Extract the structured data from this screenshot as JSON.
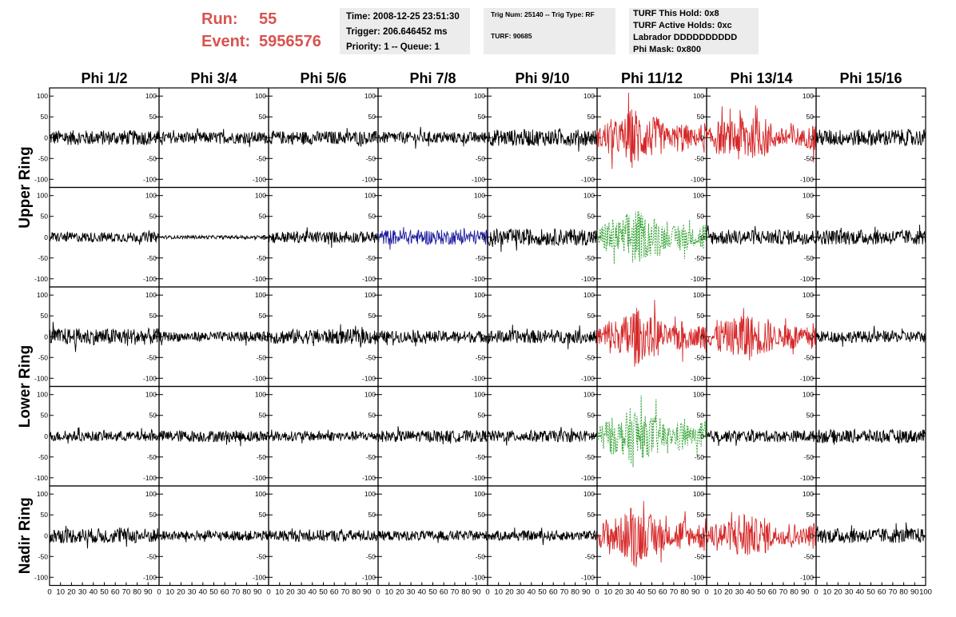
{
  "header": {
    "run_label": "Run:",
    "run_value": "55",
    "event_label": "Event:",
    "event_value": "5956576",
    "time": "Time: 2008-12-25 23:51:30",
    "trigger": "Trigger: 206.646452 ms",
    "priority": "Priority: 1 -- Queue: 1",
    "trig_num": "Trig Num: 25140 -- Trig Type: RF",
    "turf": "TURF: 90685",
    "turf_hold": "TURF This Hold: 0x8",
    "turf_active": "TURF Active Holds: 0xc",
    "labrador": "Labrador DDDDDDDDDD",
    "phi_mask": "Phi Mask: 0x800"
  },
  "chart_data": {
    "type": "line",
    "columns": [
      "Phi 1/2",
      "Phi 3/4",
      "Phi 5/6",
      "Phi 7/8",
      "Phi 9/10",
      "Phi 11/12",
      "Phi 13/14",
      "Phi 15/16"
    ],
    "ring_labels": [
      {
        "text": "Upper Ring",
        "rows": [
          0,
          1
        ]
      },
      {
        "text": "Lower Ring",
        "rows": [
          2,
          3
        ]
      },
      {
        "text": "Nadir Ring",
        "rows": [
          4,
          4
        ]
      }
    ],
    "ylim": [
      -110,
      110
    ],
    "yticks": [
      -100,
      -50,
      0,
      50,
      100
    ],
    "ytick_labels": [
      "-100",
      "-50",
      "0",
      "50",
      "100"
    ],
    "xlim": [
      0,
      100
    ],
    "xticks": [
      0,
      10,
      20,
      30,
      40,
      50,
      60,
      70,
      80,
      90,
      100
    ],
    "xtick_labels": [
      "0",
      "10",
      "20",
      "30",
      "40",
      "50",
      "60",
      "70",
      "80",
      "90",
      "100"
    ],
    "colors": {
      "normal": "#000000",
      "triggered": "#d62728",
      "masked": "#2ca02c",
      "held": "#1f1fa0"
    },
    "waveform_style": [
      [
        {
          "c": "normal",
          "a": 18
        },
        {
          "c": "normal",
          "a": 14
        },
        {
          "c": "normal",
          "a": 16
        },
        {
          "c": "normal",
          "a": 14
        },
        {
          "c": "normal",
          "a": 20
        },
        {
          "c": "triggered",
          "a": 30,
          "burst": true
        },
        {
          "c": "triggered",
          "a": 28,
          "burst": true
        },
        {
          "c": "normal",
          "a": 20
        }
      ],
      [
        {
          "c": "normal",
          "a": 12
        },
        {
          "c": "normal",
          "a": 4
        },
        {
          "c": "normal",
          "a": 14
        },
        {
          "c": "held",
          "a": 18
        },
        {
          "c": "normal",
          "a": 20
        },
        {
          "c": "masked",
          "a": 30,
          "burst": true,
          "dashed": true
        },
        {
          "c": "normal",
          "a": 18
        },
        {
          "c": "normal",
          "a": 18
        }
      ],
      [
        {
          "c": "normal",
          "a": 20
        },
        {
          "c": "normal",
          "a": 12
        },
        {
          "c": "normal",
          "a": 18
        },
        {
          "c": "normal",
          "a": 14
        },
        {
          "c": "normal",
          "a": 16
        },
        {
          "c": "triggered",
          "a": 30,
          "burst": true
        },
        {
          "c": "triggered",
          "a": 28,
          "burst": true
        },
        {
          "c": "normal",
          "a": 14
        }
      ],
      [
        {
          "c": "normal",
          "a": 12
        },
        {
          "c": "normal",
          "a": 14
        },
        {
          "c": "normal",
          "a": 12
        },
        {
          "c": "normal",
          "a": 14
        },
        {
          "c": "normal",
          "a": 14
        },
        {
          "c": "masked",
          "a": 30,
          "burst": true,
          "dashed": true
        },
        {
          "c": "normal",
          "a": 14
        },
        {
          "c": "normal",
          "a": 16
        }
      ],
      [
        {
          "c": "normal",
          "a": 18
        },
        {
          "c": "normal",
          "a": 12
        },
        {
          "c": "normal",
          "a": 14
        },
        {
          "c": "normal",
          "a": 12
        },
        {
          "c": "normal",
          "a": 12
        },
        {
          "c": "triggered",
          "a": 32,
          "burst": true
        },
        {
          "c": "triggered",
          "a": 26,
          "burst": true
        },
        {
          "c": "normal",
          "a": 18
        }
      ]
    ]
  }
}
